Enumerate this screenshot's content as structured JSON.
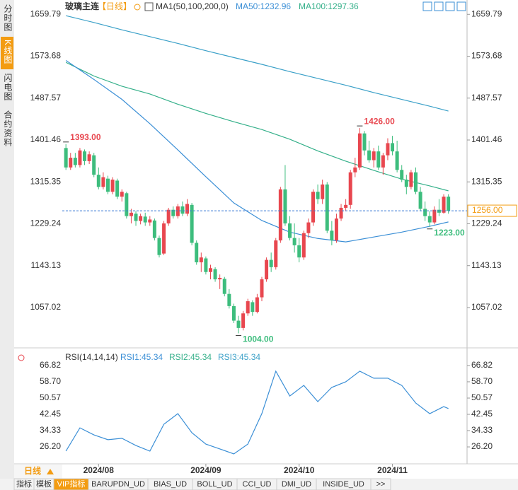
{
  "header": {
    "symbol": "玻璃主连",
    "period": "【日线】",
    "indicator": "MA1(50,100,200,0)",
    "ma50": "MA50:1232.96",
    "ma100": "MA100:1297.36"
  },
  "sidebar": [
    "分时图",
    "K线图",
    "闪电图",
    "合约资料"
  ],
  "bottom": {
    "period": "日线",
    "tabs": [
      "指标",
      "模板",
      "VIP指标",
      "BARUPDN_UD",
      "BIAS_UD",
      "BOLL_UD",
      "CCI_UD",
      "DMI_UD",
      "INSIDE_UD",
      ">>"
    ]
  },
  "chart_data": [
    {
      "type": "candlestick",
      "up_color": "#e8474f",
      "down_color": "#3dbd7d",
      "xlim": [
        -11.1,
        86
      ],
      "ylim": [
        977,
        1682
      ],
      "xticks": [
        {
          "value": 7,
          "label": "2024/08"
        },
        {
          "value": 30,
          "label": "2024/09"
        },
        {
          "value": 50,
          "label": "2024/10"
        },
        {
          "value": 70,
          "label": "2024/11"
        }
      ],
      "yticks": [
        1659.79,
        1573.68,
        1487.57,
        1401.46,
        1315.35,
        1229.24,
        1143.13,
        1057.02
      ],
      "candles": [
        [
          1385,
          1393,
          1340,
          1345
        ],
        [
          1345,
          1375,
          1340,
          1365
        ],
        [
          1365,
          1375,
          1345,
          1350
        ],
        [
          1350,
          1385,
          1345,
          1380
        ],
        [
          1378,
          1382,
          1350,
          1358
        ],
        [
          1358,
          1378,
          1352,
          1372
        ],
        [
          1370,
          1375,
          1325,
          1330
        ],
        [
          1330,
          1345,
          1300,
          1305
        ],
        [
          1305,
          1335,
          1300,
          1325
        ],
        [
          1322,
          1328,
          1290,
          1295
        ],
        [
          1295,
          1325,
          1290,
          1320
        ],
        [
          1318,
          1322,
          1280,
          1285
        ],
        [
          1285,
          1300,
          1275,
          1295
        ],
        [
          1292,
          1295,
          1240,
          1245
        ],
        [
          1245,
          1260,
          1230,
          1252
        ],
        [
          1250,
          1255,
          1225,
          1235
        ],
        [
          1235,
          1250,
          1228,
          1245
        ],
        [
          1244,
          1252,
          1225,
          1232
        ],
        [
          1232,
          1245,
          1225,
          1238
        ],
        [
          1236,
          1240,
          1195,
          1200
        ],
        [
          1200,
          1205,
          1160,
          1165
        ],
        [
          1168,
          1235,
          1165,
          1230
        ],
        [
          1230,
          1262,
          1225,
          1258
        ],
        [
          1258,
          1265,
          1240,
          1245
        ],
        [
          1245,
          1270,
          1240,
          1265
        ],
        [
          1265,
          1275,
          1245,
          1250
        ],
        [
          1250,
          1280,
          1245,
          1270
        ],
        [
          1268,
          1272,
          1185,
          1190
        ],
        [
          1190,
          1195,
          1145,
          1150
        ],
        [
          1150,
          1170,
          1130,
          1160
        ],
        [
          1158,
          1162,
          1125,
          1130
        ],
        [
          1130,
          1145,
          1115,
          1138
        ],
        [
          1136,
          1140,
          1110,
          1115
        ],
        [
          1115,
          1125,
          1095,
          1118
        ],
        [
          1116,
          1120,
          1080,
          1085
        ],
        [
          1085,
          1095,
          1055,
          1060
        ],
        [
          1060,
          1065,
          1025,
          1030
        ],
        [
          1030,
          1040,
          1004,
          1015
        ],
        [
          1015,
          1050,
          1010,
          1045
        ],
        [
          1045,
          1075,
          1040,
          1070
        ],
        [
          1068,
          1072,
          1040,
          1048
        ],
        [
          1048,
          1085,
          1045,
          1078
        ],
        [
          1078,
          1120,
          1070,
          1115
        ],
        [
          1115,
          1160,
          1110,
          1155
        ],
        [
          1155,
          1170,
          1130,
          1140
        ],
        [
          1140,
          1200,
          1135,
          1195
        ],
        [
          1195,
          1305,
          1190,
          1300
        ],
        [
          1300,
          1350,
          1225,
          1230
        ],
        [
          1230,
          1245,
          1195,
          1200
        ],
        [
          1200,
          1230,
          1170,
          1185
        ],
        [
          1185,
          1200,
          1150,
          1160
        ],
        [
          1160,
          1215,
          1155,
          1210
        ],
        [
          1210,
          1240,
          1200,
          1232
        ],
        [
          1232,
          1300,
          1225,
          1295
        ],
        [
          1295,
          1310,
          1270,
          1280
        ],
        [
          1280,
          1320,
          1270,
          1310
        ],
        [
          1310,
          1315,
          1210,
          1215
        ],
        [
          1215,
          1235,
          1185,
          1195
        ],
        [
          1195,
          1250,
          1190,
          1240
        ],
        [
          1240,
          1270,
          1235,
          1262
        ],
        [
          1262,
          1280,
          1255,
          1268
        ],
        [
          1268,
          1340,
          1260,
          1335
        ],
        [
          1335,
          1365,
          1325,
          1345
        ],
        [
          1345,
          1426,
          1340,
          1415
        ],
        [
          1415,
          1420,
          1370,
          1380
        ],
        [
          1380,
          1400,
          1355,
          1360
        ],
        [
          1360,
          1385,
          1345,
          1378
        ],
        [
          1378,
          1390,
          1340,
          1345
        ],
        [
          1345,
          1375,
          1330,
          1370
        ],
        [
          1370,
          1405,
          1360,
          1395
        ],
        [
          1395,
          1410,
          1370,
          1378
        ],
        [
          1378,
          1400,
          1335,
          1340
        ],
        [
          1340,
          1350,
          1315,
          1320
        ],
        [
          1320,
          1330,
          1290,
          1305
        ],
        [
          1305,
          1340,
          1300,
          1335
        ],
        [
          1335,
          1345,
          1290,
          1295
        ],
        [
          1295,
          1305,
          1255,
          1260
        ],
        [
          1260,
          1275,
          1235,
          1245
        ],
        [
          1245,
          1255,
          1223,
          1232
        ],
        [
          1232,
          1265,
          1228,
          1258
        ],
        [
          1258,
          1280,
          1245,
          1252
        ],
        [
          1252,
          1290,
          1250,
          1285
        ],
        [
          1285,
          1290,
          1250,
          1256
        ]
      ],
      "line_x": [
        0,
        6,
        12,
        18,
        24,
        30,
        36,
        42,
        48,
        54,
        60,
        66,
        72,
        78,
        82
      ],
      "lines": [
        {
          "color": "#3aa0c8",
          "values": [
            1657,
            1643,
            1628,
            1614,
            1600,
            1585,
            1571,
            1557,
            1542,
            1528,
            1514,
            1499,
            1485,
            1471,
            1461
          ]
        },
        {
          "color": "#35b08a",
          "values": [
            1561,
            1533,
            1512,
            1496,
            1475,
            1456,
            1439,
            1423,
            1403,
            1379,
            1358,
            1339,
            1321,
            1307,
            1297
          ]
        },
        {
          "color": "#3b8fd6",
          "values": [
            1565,
            1526,
            1485,
            1435,
            1381,
            1326,
            1272,
            1236,
            1212,
            1199,
            1192,
            1202,
            1212,
            1224,
            1233
          ]
        }
      ],
      "annotations": [
        {
          "index": 0,
          "value": 1393,
          "label": "1393.00",
          "kind": "high"
        },
        {
          "index": 63,
          "value": 1426,
          "label": "1426.00",
          "kind": "high"
        },
        {
          "index": 37,
          "value": 1004,
          "label": "1004.00",
          "kind": "low"
        },
        {
          "index": 78,
          "value": 1223,
          "label": "1223.00",
          "kind": "low"
        }
      ],
      "current_price": {
        "value": 1256,
        "label": "1256.00"
      }
    },
    {
      "type": "line",
      "title": "RSI(14,14,14)",
      "legend": [
        {
          "label": "RSI1:45.34",
          "color": "#3b8fd6"
        },
        {
          "label": "RSI2:45.34",
          "color": "#35b08a"
        },
        {
          "label": "RSI3:45.34",
          "color": "#3aa0c8"
        }
      ],
      "xlim": [
        -11.1,
        86
      ],
      "ylim": [
        18.1,
        72.8
      ],
      "yticks": [
        66.82,
        {
          "value": 58.7,
          "label": "58.70"
        },
        50.57,
        42.45,
        34.33,
        {
          "value": 26.2,
          "label": "26.20"
        }
      ],
      "x": [
        0,
        3,
        6,
        9,
        12,
        15,
        18,
        21,
        24,
        27,
        30,
        33,
        36,
        39,
        42,
        45,
        48,
        51,
        54,
        57,
        60,
        63,
        66,
        69,
        72,
        75,
        78,
        81,
        82
      ],
      "color": "#3b8fd6",
      "values": [
        24.1,
        35.7,
        32.2,
        29.8,
        30.5,
        26.9,
        24.1,
        37.5,
        42.8,
        33.3,
        27.6,
        25.2,
        22.7,
        27.6,
        42.8,
        64.0,
        51.6,
        56.9,
        48.8,
        55.9,
        58.7,
        64.0,
        60.5,
        60.5,
        56.9,
        48.1,
        42.8,
        46.3,
        45.34
      ]
    }
  ]
}
